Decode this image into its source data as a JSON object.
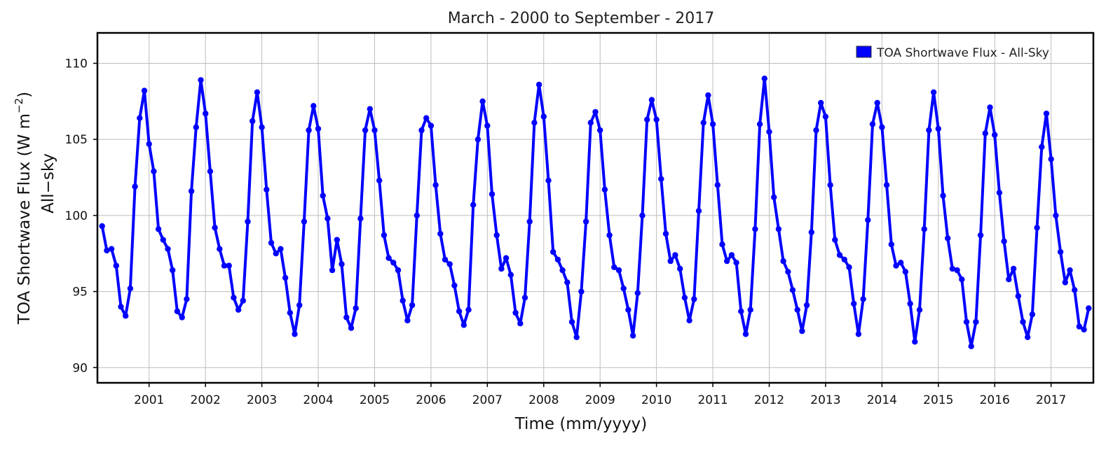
{
  "chart_data": {
    "type": "line",
    "title": "March - 2000 to September - 2017",
    "xlabel": "Time (mm/yyyy)",
    "ylabel": "TOA Shortwave Flux (W m",
    "ylabel_sup": "−2",
    "ylabel_close": ")",
    "ylabel2": "All−sky",
    "ylim": [
      89,
      112
    ],
    "yticks": [
      90,
      95,
      100,
      105,
      110
    ],
    "xlim": [
      "2000-02",
      "2017-10"
    ],
    "xticks": [
      "2001",
      "2002",
      "2003",
      "2004",
      "2005",
      "2006",
      "2007",
      "2008",
      "2009",
      "2010",
      "2011",
      "2012",
      "2013",
      "2014",
      "2015",
      "2016",
      "2017"
    ],
    "grid": true,
    "legend": {
      "position": "top-right",
      "color": "#0000ff"
    },
    "series": [
      {
        "name": "TOA Shortwave Flux - All-Sky",
        "color": "#0000ff",
        "start": "2000-03",
        "frequency": "monthly",
        "values": [
          99.3,
          97.7,
          97.8,
          96.7,
          94.0,
          93.4,
          95.2,
          101.9,
          106.4,
          108.2,
          104.7,
          102.9,
          99.1,
          98.4,
          97.8,
          96.4,
          93.7,
          93.3,
          94.5,
          101.6,
          105.8,
          108.9,
          106.7,
          102.9,
          99.2,
          97.8,
          96.7,
          96.7,
          94.6,
          93.8,
          94.4,
          99.6,
          106.2,
          108.1,
          105.8,
          101.7,
          98.2,
          97.5,
          97.8,
          95.9,
          93.6,
          92.2,
          94.1,
          99.6,
          105.6,
          107.2,
          105.7,
          101.3,
          99.8,
          96.4,
          98.4,
          96.8,
          93.3,
          92.6,
          93.9,
          99.8,
          105.6,
          107.0,
          105.6,
          102.3,
          98.7,
          97.2,
          96.9,
          96.4,
          94.4,
          93.1,
          94.1,
          100.0,
          105.6,
          106.4,
          105.9,
          102.0,
          98.8,
          97.1,
          96.8,
          95.4,
          93.7,
          92.8,
          93.8,
          100.7,
          105.0,
          107.5,
          105.9,
          101.4,
          98.7,
          96.5,
          97.2,
          96.1,
          93.6,
          92.9,
          94.6,
          99.6,
          106.1,
          108.6,
          106.5,
          102.3,
          97.6,
          97.1,
          96.4,
          95.6,
          93.0,
          92.0,
          95.0,
          99.6,
          106.1,
          106.8,
          105.6,
          101.7,
          98.7,
          96.6,
          96.4,
          95.2,
          93.8,
          92.1,
          94.9,
          100.0,
          106.3,
          107.6,
          106.3,
          102.4,
          98.8,
          97.0,
          97.4,
          96.5,
          94.6,
          93.1,
          94.5,
          100.3,
          106.1,
          107.9,
          106.0,
          102.0,
          98.1,
          97.0,
          97.4,
          96.9,
          93.7,
          92.2,
          93.8,
          99.1,
          106.0,
          109.0,
          105.5,
          101.2,
          99.1,
          97.0,
          96.3,
          95.1,
          93.8,
          92.4,
          94.1,
          98.9,
          105.6,
          107.4,
          106.5,
          102.0,
          98.4,
          97.4,
          97.1,
          96.6,
          94.2,
          92.2,
          94.5,
          99.7,
          106.0,
          107.4,
          105.8,
          102.0,
          98.1,
          96.7,
          96.9,
          96.3,
          94.2,
          91.7,
          93.8,
          99.1,
          105.6,
          108.1,
          105.7,
          101.3,
          98.5,
          96.5,
          96.4,
          95.8,
          93.0,
          91.4,
          93.0,
          98.7,
          105.4,
          107.1,
          105.3,
          101.5,
          98.3,
          95.8,
          96.5,
          94.7,
          93.0,
          92.0,
          93.5,
          99.2,
          104.5,
          106.7,
          103.7,
          100.0,
          97.6,
          95.6,
          96.4,
          95.1,
          92.7,
          92.5,
          93.9
        ]
      }
    ]
  }
}
